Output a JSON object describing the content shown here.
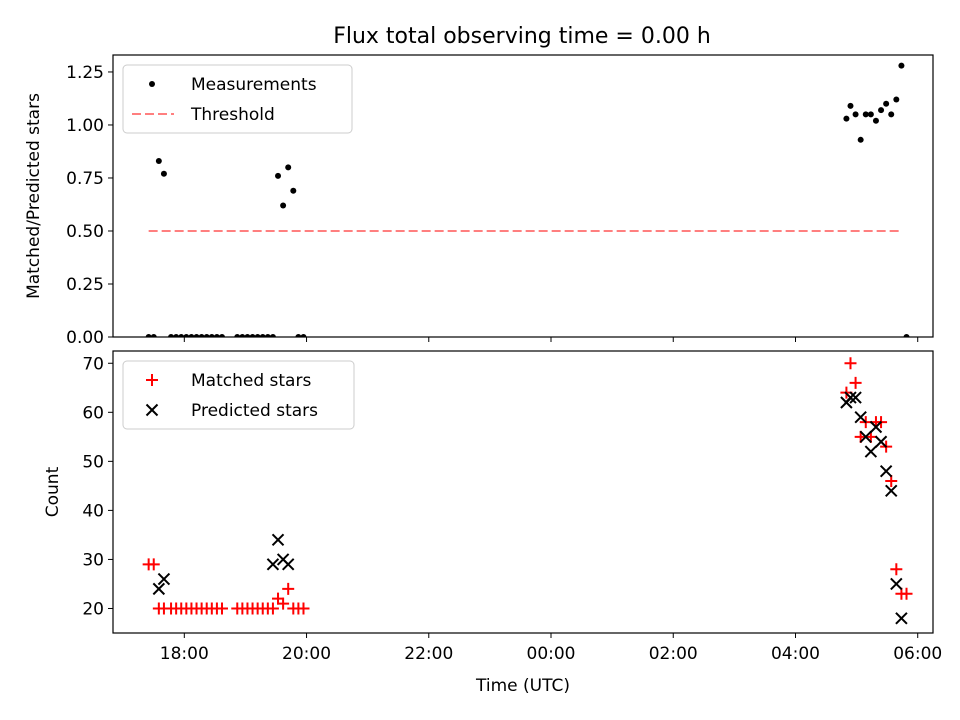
{
  "title": "Flux total observing time = 0.00 h",
  "chart_data": [
    {
      "type": "scatter",
      "ylabel": "Matched/Predicted stars",
      "ylim": [
        0,
        1.33
      ],
      "yticks": [
        "0.00",
        "0.25",
        "0.50",
        "0.75",
        "1.00",
        "1.25"
      ],
      "ytick_values": [
        0,
        0.25,
        0.5,
        0.75,
        1.0,
        1.25
      ],
      "legend_position": "top-left",
      "series": [
        {
          "name": "Measurements",
          "color": "#000000",
          "marker": "dot",
          "points": [
            [
              "17:25",
              0
            ],
            [
              "17:30",
              0
            ],
            [
              "17:35",
              0.83
            ],
            [
              "17:40",
              0.77
            ],
            [
              "17:47",
              0
            ],
            [
              "17:52",
              0
            ],
            [
              "17:57",
              0
            ],
            [
              "18:02",
              0
            ],
            [
              "18:07",
              0
            ],
            [
              "18:12",
              0
            ],
            [
              "18:17",
              0
            ],
            [
              "18:22",
              0
            ],
            [
              "18:27",
              0
            ],
            [
              "18:32",
              0
            ],
            [
              "18:37",
              0
            ],
            [
              "18:52",
              0
            ],
            [
              "18:57",
              0
            ],
            [
              "19:02",
              0
            ],
            [
              "19:07",
              0
            ],
            [
              "19:12",
              0
            ],
            [
              "19:17",
              0
            ],
            [
              "19:22",
              0
            ],
            [
              "19:27",
              0
            ],
            [
              "19:32",
              0.76
            ],
            [
              "19:37",
              0.62
            ],
            [
              "19:42",
              0.8
            ],
            [
              "19:47",
              0.69
            ],
            [
              "19:52",
              0
            ],
            [
              "19:57",
              0
            ],
            [
              "04:50",
              1.03
            ],
            [
              "04:54",
              1.09
            ],
            [
              "04:59",
              1.05
            ],
            [
              "05:04",
              0.93
            ],
            [
              "05:09",
              1.05
            ],
            [
              "05:14",
              1.05
            ],
            [
              "05:19",
              1.02
            ],
            [
              "05:24",
              1.07
            ],
            [
              "05:29",
              1.1
            ],
            [
              "05:34",
              1.05
            ],
            [
              "05:39",
              1.12
            ],
            [
              "05:44",
              1.28
            ],
            [
              "05:49",
              0
            ]
          ]
        },
        {
          "name": "Threshold",
          "color": "#ff7f7f",
          "style": "dashed",
          "points": [
            [
              "17:25",
              0.5
            ],
            [
              "05:44",
              0.5
            ]
          ]
        }
      ]
    },
    {
      "type": "scatter",
      "xlabel": "Time (UTC)",
      "ylabel": "Count",
      "ylim": [
        15,
        72.5
      ],
      "yticks": [
        "20",
        "30",
        "40",
        "50",
        "60",
        "70"
      ],
      "ytick_values": [
        20,
        30,
        40,
        50,
        60,
        70
      ],
      "xticks": [
        "18:00",
        "20:00",
        "22:00",
        "00:00",
        "02:00",
        "04:00",
        "06:00"
      ],
      "xlim": [
        "16:50",
        "06:15"
      ],
      "legend_position": "top-left",
      "series": [
        {
          "name": "Matched stars",
          "color": "#ff0000",
          "marker": "plus",
          "points": [
            [
              "17:25",
              29
            ],
            [
              "17:30",
              29
            ],
            [
              "17:35",
              20
            ],
            [
              "17:40",
              20
            ],
            [
              "17:47",
              20
            ],
            [
              "17:52",
              20
            ],
            [
              "17:57",
              20
            ],
            [
              "18:02",
              20
            ],
            [
              "18:07",
              20
            ],
            [
              "18:12",
              20
            ],
            [
              "18:17",
              20
            ],
            [
              "18:22",
              20
            ],
            [
              "18:27",
              20
            ],
            [
              "18:32",
              20
            ],
            [
              "18:37",
              20
            ],
            [
              "18:52",
              20
            ],
            [
              "18:57",
              20
            ],
            [
              "19:02",
              20
            ],
            [
              "19:07",
              20
            ],
            [
              "19:12",
              20
            ],
            [
              "19:17",
              20
            ],
            [
              "19:22",
              20
            ],
            [
              "19:27",
              20
            ],
            [
              "19:32",
              22
            ],
            [
              "19:37",
              21
            ],
            [
              "19:42",
              24
            ],
            [
              "19:47",
              20
            ],
            [
              "19:52",
              20
            ],
            [
              "19:57",
              20
            ],
            [
              "04:50",
              64
            ],
            [
              "04:54",
              70
            ],
            [
              "04:59",
              66
            ],
            [
              "05:04",
              55
            ],
            [
              "05:09",
              58
            ],
            [
              "05:14",
              55
            ],
            [
              "05:19",
              58
            ],
            [
              "05:24",
              58
            ],
            [
              "05:29",
              53
            ],
            [
              "05:34",
              46
            ],
            [
              "05:39",
              28
            ],
            [
              "05:44",
              23
            ],
            [
              "05:49",
              23
            ]
          ]
        },
        {
          "name": "Predicted stars",
          "color": "#000000",
          "marker": "x",
          "points": [
            [
              "17:35",
              24
            ],
            [
              "17:40",
              26
            ],
            [
              "19:27",
              29
            ],
            [
              "19:32",
              34
            ],
            [
              "19:37",
              30
            ],
            [
              "19:42",
              29
            ],
            [
              "04:50",
              62
            ],
            [
              "04:54",
              63
            ],
            [
              "04:59",
              63
            ],
            [
              "05:04",
              59
            ],
            [
              "05:09",
              55
            ],
            [
              "05:14",
              52
            ],
            [
              "05:19",
              57
            ],
            [
              "05:24",
              54
            ],
            [
              "05:29",
              48
            ],
            [
              "05:34",
              44
            ],
            [
              "05:39",
              25
            ],
            [
              "05:44",
              18
            ]
          ]
        }
      ]
    }
  ]
}
